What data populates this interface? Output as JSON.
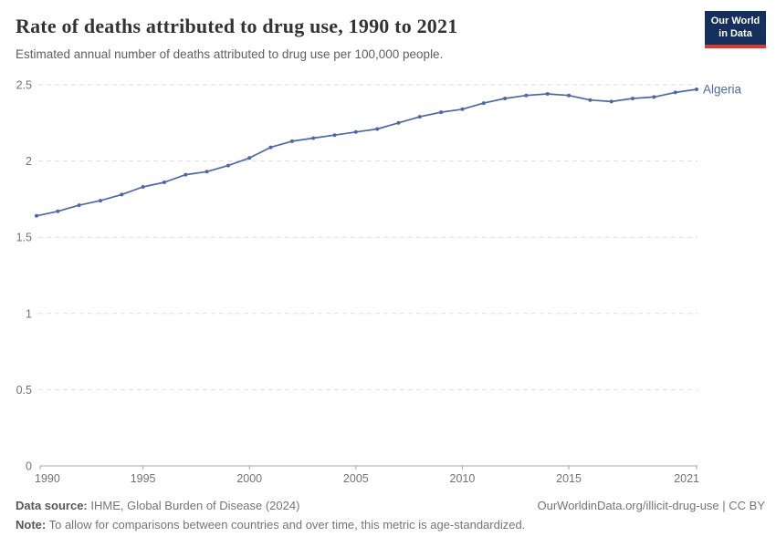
{
  "header": {
    "title": "Rate of deaths attributed to drug use, 1990 to 2021",
    "subtitle": "Estimated annual number of deaths attributed to drug use per 100,000 people.",
    "logo_line1": "Our World",
    "logo_line2": "in Data"
  },
  "chart_data": {
    "type": "line",
    "title": "Rate of deaths attributed to drug use, 1990 to 2021",
    "xlabel": "",
    "ylabel": "",
    "ylim": [
      0,
      2.5
    ],
    "yticks": [
      0,
      0.5,
      1,
      1.5,
      2,
      2.5
    ],
    "xticks": [
      1990,
      1995,
      2000,
      2005,
      2010,
      2015,
      2021
    ],
    "grid": "horizontal-dashed",
    "legend_position": "line-end-label",
    "x": [
      1990,
      1991,
      1992,
      1993,
      1994,
      1995,
      1996,
      1997,
      1998,
      1999,
      2000,
      2001,
      2002,
      2003,
      2004,
      2005,
      2006,
      2007,
      2008,
      2009,
      2010,
      2011,
      2012,
      2013,
      2014,
      2015,
      2016,
      2017,
      2018,
      2019,
      2020,
      2021
    ],
    "series": [
      {
        "name": "Algeria",
        "color": "#4c69a5",
        "values": [
          1.64,
          1.67,
          1.71,
          1.74,
          1.78,
          1.83,
          1.86,
          1.91,
          1.93,
          1.97,
          2.02,
          2.09,
          2.13,
          2.15,
          2.17,
          2.19,
          2.21,
          2.25,
          2.29,
          2.32,
          2.34,
          2.38,
          2.41,
          2.43,
          2.44,
          2.43,
          2.4,
          2.39,
          2.41,
          2.42,
          2.45,
          2.47
        ]
      }
    ]
  },
  "colors": {
    "accent_line": "#4c69a5",
    "grid": "#dedede",
    "axis": "#a5a5a5",
    "tick_label": "#737373",
    "logo_bg": "#15305c",
    "logo_accent": "#d93b2b"
  },
  "footer": {
    "data_source_label": "Data source:",
    "data_source_value": "IHME, Global Burden of Disease (2024)",
    "link": "OurWorldinData.org/illicit-drug-use | CC BY",
    "note_label": "Note:",
    "note_value": "To allow for comparisons between countries and over time, this metric is age-standardized."
  }
}
